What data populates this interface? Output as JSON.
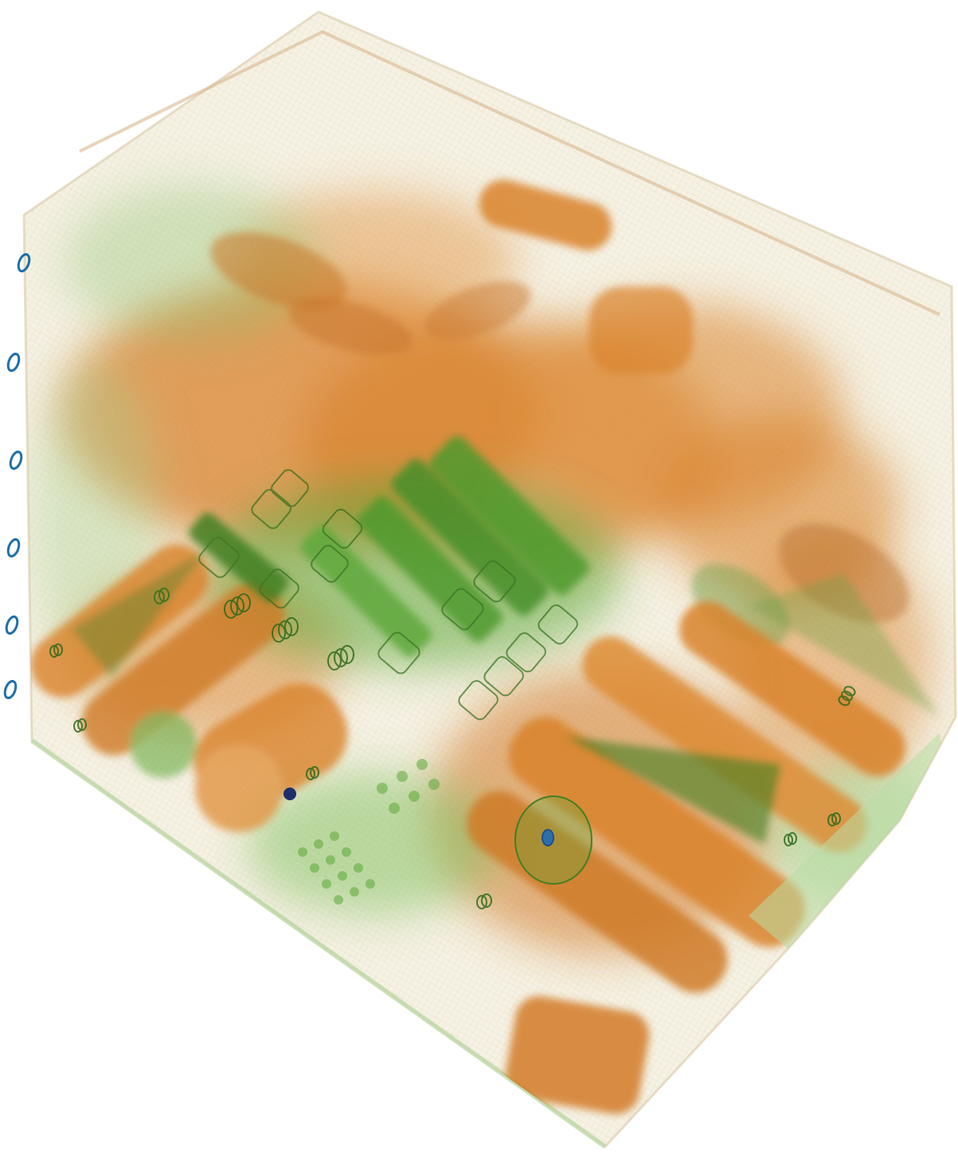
{
  "scene": {
    "kind": "volumetric x-ray baggage scan",
    "palette": {
      "background": "#ffffff",
      "organic_orange": "#d9822b",
      "organic_orange_light": "#e7a15a",
      "inorganic_green": "#5ea83a",
      "inorganic_green_dark": "#3f7f24",
      "inorganic_green_light": "#a9d393",
      "metal_blue": "#1f4f8f",
      "shell_tint": "#e8dcc0"
    },
    "materials": [
      "organic-orange",
      "inorganic-green",
      "metal-blue"
    ],
    "container": "translucent-box"
  }
}
